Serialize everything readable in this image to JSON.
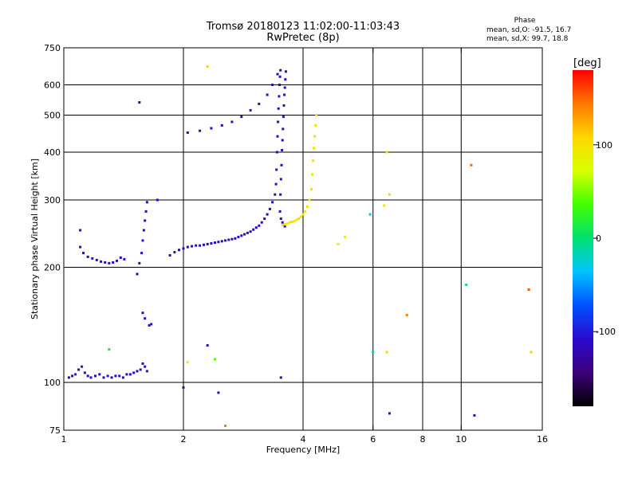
{
  "header": {
    "title_line1": "Tromsø 20180123 11:02:00-11:03:43",
    "title_line2": "RwPretec (8p)",
    "phase_title": "Phase",
    "phase_o": "mean, sd,O: -91.5, 16.7",
    "phase_x": "mean, sd,X:  99.7, 18.8"
  },
  "colorbar": {
    "unit_label": "[deg]",
    "range": [
      -180,
      180
    ],
    "ticks": [
      {
        "value": 100,
        "label": "100"
      },
      {
        "value": 0,
        "label": "0"
      },
      {
        "value": -100,
        "label": "-100"
      }
    ]
  },
  "chart_data": {
    "type": "scatter",
    "title": "Tromsø 20180123 11:02:00-11:03:43",
    "subtitle": "RwPretec (8p)",
    "xlabel": "Frequency [MHz]",
    "ylabel": "Stationary phase Virtual Height [km]",
    "x_scale": "log",
    "y_scale": "log",
    "xlim": [
      1,
      16
    ],
    "ylim": [
      75,
      750
    ],
    "grid": true,
    "x_ticks": [
      {
        "value": 1,
        "label": "1"
      },
      {
        "value": 2,
        "label": "2"
      },
      {
        "value": 4,
        "label": "4"
      },
      {
        "value": 6,
        "label": "6"
      },
      {
        "value": 8,
        "label": "8"
      },
      {
        "value": 10,
        "label": "10"
      },
      {
        "value": 16,
        "label": "16"
      }
    ],
    "x_grid": [
      2,
      4,
      6,
      8,
      10
    ],
    "y_ticks": [
      {
        "value": 75,
        "label": "75"
      },
      {
        "value": 100,
        "label": "100"
      },
      {
        "value": 200,
        "label": "200"
      },
      {
        "value": 300,
        "label": "300"
      },
      {
        "value": 400,
        "label": "400"
      },
      {
        "value": 500,
        "label": "500"
      },
      {
        "value": 600,
        "label": "600"
      },
      {
        "value": 750,
        "label": "750"
      }
    ],
    "y_grid": [
      100,
      200,
      300,
      400,
      500,
      600
    ],
    "series": [
      {
        "name": "O",
        "points": [
          [
            1.03,
            103,
            -110
          ],
          [
            1.05,
            104,
            -120
          ],
          [
            1.07,
            105,
            -100
          ],
          [
            1.09,
            108,
            -115
          ],
          [
            1.11,
            110,
            -105
          ],
          [
            1.13,
            106,
            -120
          ],
          [
            1.15,
            104,
            -110
          ],
          [
            1.17,
            103,
            -105
          ],
          [
            1.2,
            104,
            -115
          ],
          [
            1.23,
            105,
            -110
          ],
          [
            1.26,
            103,
            -120
          ],
          [
            1.29,
            104,
            -100
          ],
          [
            1.32,
            103,
            -110
          ],
          [
            1.35,
            104,
            -118
          ],
          [
            1.38,
            104,
            -105
          ],
          [
            1.41,
            103,
            -112
          ],
          [
            1.44,
            105,
            -120
          ],
          [
            1.47,
            105,
            -108
          ],
          [
            1.5,
            106,
            -110
          ],
          [
            1.53,
            107,
            -115
          ],
          [
            1.56,
            108,
            -100
          ],
          [
            1.58,
            112,
            -120
          ],
          [
            1.6,
            110,
            -110
          ],
          [
            1.62,
            107,
            -105
          ],
          [
            1.1,
            226,
            -120
          ],
          [
            1.12,
            218,
            -112
          ],
          [
            1.15,
            213,
            -118
          ],
          [
            1.18,
            211,
            -105
          ],
          [
            1.21,
            209,
            -115
          ],
          [
            1.24,
            207,
            -110
          ],
          [
            1.27,
            206,
            -120
          ],
          [
            1.3,
            205,
            -108
          ],
          [
            1.33,
            206,
            -115
          ],
          [
            1.36,
            208,
            -112
          ],
          [
            1.39,
            212,
            -118
          ],
          [
            1.42,
            210,
            -105
          ],
          [
            1.53,
            192,
            -115
          ],
          [
            1.55,
            205,
            -120
          ],
          [
            1.57,
            218,
            -110
          ],
          [
            1.58,
            235,
            -105
          ],
          [
            1.59,
            250,
            -118
          ],
          [
            1.6,
            265,
            -112
          ],
          [
            1.61,
            280,
            -120
          ],
          [
            1.62,
            296,
            -108
          ],
          [
            1.58,
            152,
            -115
          ],
          [
            1.6,
            147,
            -110
          ],
          [
            1.64,
            141,
            -118
          ],
          [
            1.66,
            142,
            -105
          ],
          [
            1.72,
            300,
            -110
          ],
          [
            1.85,
            215,
            -115
          ],
          [
            1.9,
            219,
            -110
          ],
          [
            1.95,
            222,
            -118
          ],
          [
            2.0,
            224,
            -108
          ],
          [
            2.05,
            226,
            -120
          ],
          [
            2.1,
            227,
            -112
          ],
          [
            2.15,
            228,
            -115
          ],
          [
            2.2,
            228,
            -105
          ],
          [
            2.25,
            229,
            -118
          ],
          [
            2.3,
            230,
            -110
          ],
          [
            2.35,
            231,
            -108
          ],
          [
            2.4,
            232,
            -115
          ],
          [
            2.45,
            233,
            -112
          ],
          [
            2.5,
            234,
            -118
          ],
          [
            2.55,
            235,
            -105
          ],
          [
            2.6,
            236,
            -110
          ],
          [
            2.65,
            237,
            -115
          ],
          [
            2.7,
            238,
            -120
          ],
          [
            2.75,
            240,
            -108
          ],
          [
            2.8,
            242,
            -112
          ],
          [
            2.85,
            244,
            -118
          ],
          [
            2.9,
            246,
            -105
          ],
          [
            2.95,
            248,
            -115
          ],
          [
            3.0,
            251,
            -110
          ],
          [
            3.05,
            254,
            -118
          ],
          [
            3.1,
            257,
            -112
          ],
          [
            3.15,
            262,
            -120
          ],
          [
            3.2,
            268,
            -115
          ],
          [
            3.25,
            275,
            -125
          ],
          [
            3.3,
            284,
            -110
          ],
          [
            3.35,
            296,
            -118
          ],
          [
            3.4,
            310,
            -112
          ],
          [
            3.42,
            330,
            -120
          ],
          [
            3.43,
            360,
            -108
          ],
          [
            3.44,
            400,
            -115
          ],
          [
            3.45,
            440,
            -112
          ],
          [
            3.46,
            480,
            -118
          ],
          [
            3.47,
            520,
            -110
          ],
          [
            3.48,
            560,
            -105
          ],
          [
            3.49,
            600,
            -115
          ],
          [
            3.5,
            630,
            -112
          ],
          [
            3.51,
            655,
            -118
          ],
          [
            3.5,
            280,
            -112
          ],
          [
            3.51,
            310,
            -120
          ],
          [
            3.52,
            340,
            -108
          ],
          [
            3.53,
            370,
            -115
          ],
          [
            3.54,
            405,
            -110
          ],
          [
            3.55,
            430,
            -118
          ],
          [
            3.56,
            460,
            -112
          ],
          [
            3.57,
            495,
            -105
          ],
          [
            3.58,
            530,
            -120
          ],
          [
            3.59,
            565,
            -110
          ],
          [
            3.6,
            590,
            -115
          ],
          [
            3.61,
            620,
            -108
          ],
          [
            3.62,
            650,
            -112
          ],
          [
            3.52,
            268,
            -115
          ],
          [
            3.55,
            262,
            -110
          ],
          [
            3.58,
            258,
            -120
          ],
          [
            3.6,
            256,
            -105
          ],
          [
            2.05,
            450,
            -110
          ],
          [
            2.2,
            455,
            -115
          ],
          [
            2.35,
            462,
            -108
          ],
          [
            2.5,
            470,
            -112
          ],
          [
            2.65,
            480,
            -118
          ],
          [
            2.8,
            495,
            -110
          ],
          [
            2.95,
            515,
            -105
          ],
          [
            3.1,
            535,
            -115
          ],
          [
            3.25,
            565,
            -112
          ],
          [
            3.35,
            600,
            -118
          ],
          [
            3.45,
            640,
            -110
          ],
          [
            1.1,
            250,
            -112
          ],
          [
            1.55,
            540,
            -115
          ],
          [
            2.0,
            97,
            -118
          ],
          [
            2.45,
            94,
            -115
          ],
          [
            2.3,
            125,
            -108
          ],
          [
            3.52,
            103,
            -112
          ],
          [
            6.6,
            83,
            -105
          ],
          [
            10.8,
            82,
            -112
          ]
        ]
      },
      {
        "name": "X",
        "points": [
          [
            3.55,
            258,
            95
          ],
          [
            3.6,
            259,
            100
          ],
          [
            3.65,
            260,
            92
          ],
          [
            3.7,
            262,
            105
          ],
          [
            3.75,
            263,
            98
          ],
          [
            3.8,
            264,
            102
          ],
          [
            3.85,
            266,
            95
          ],
          [
            3.9,
            268,
            100
          ],
          [
            3.95,
            271,
            108
          ],
          [
            4.0,
            275,
            96
          ],
          [
            4.05,
            280,
            100
          ],
          [
            4.1,
            288,
            104
          ],
          [
            4.15,
            300,
            98
          ],
          [
            4.2,
            320,
            102
          ],
          [
            4.22,
            350,
            95
          ],
          [
            4.24,
            380,
            100
          ],
          [
            4.26,
            410,
            105
          ],
          [
            4.28,
            440,
            98
          ],
          [
            4.3,
            470,
            102
          ],
          [
            4.32,
            500,
            95
          ],
          [
            2.3,
            670,
            110
          ],
          [
            4.9,
            230,
            80
          ],
          [
            5.1,
            240,
            85
          ],
          [
            6.4,
            290,
            95
          ],
          [
            6.5,
            400,
            105
          ],
          [
            6.6,
            310,
            108
          ],
          [
            6.5,
            120,
            110
          ],
          [
            7.3,
            150,
            140
          ],
          [
            10.6,
            370,
            150
          ],
          [
            14.8,
            175,
            155
          ],
          [
            15.0,
            120,
            112
          ],
          [
            5.9,
            275,
            -30
          ],
          [
            6.0,
            120,
            -20
          ],
          [
            10.3,
            180,
            -10
          ],
          [
            1.3,
            122,
            10
          ],
          [
            2.05,
            113,
            80
          ],
          [
            2.55,
            77,
            145
          ],
          [
            2.4,
            115,
            40
          ]
        ]
      }
    ]
  }
}
